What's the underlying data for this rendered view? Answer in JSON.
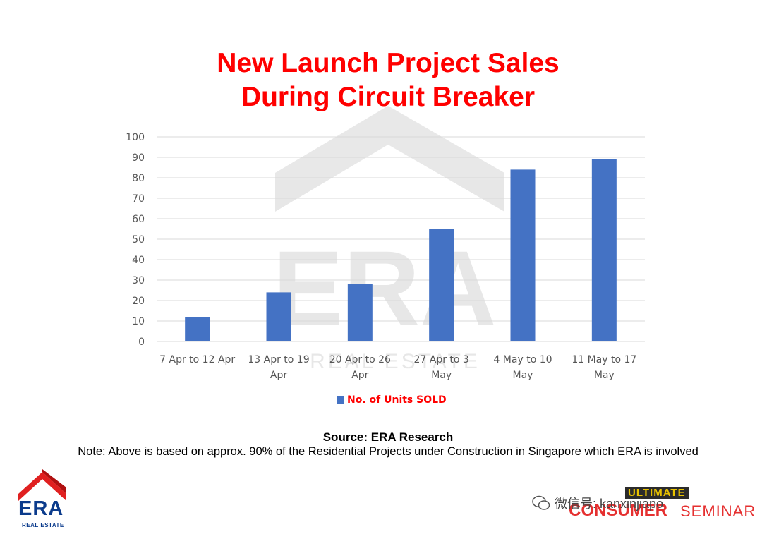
{
  "title_lines": [
    "New Launch Project Sales",
    "During Circuit Breaker"
  ],
  "chart_data": {
    "type": "bar",
    "categories": [
      [
        "7 Apr to 12 Apr"
      ],
      [
        "13 Apr to 19",
        "Apr"
      ],
      [
        "20 Apr to 26",
        "Apr"
      ],
      [
        "27 Apr to 3",
        "May"
      ],
      [
        "4 May to 10",
        "May"
      ],
      [
        "11 May to 17",
        "May"
      ]
    ],
    "series": [
      {
        "name": "No. of Units SOLD",
        "values": [
          12,
          24,
          28,
          55,
          84,
          89
        ]
      }
    ],
    "ylim": [
      0,
      100
    ],
    "yticks": [
      0,
      10,
      20,
      30,
      40,
      50,
      60,
      70,
      80,
      90,
      100
    ],
    "grid": true,
    "legend_position": "bottom",
    "bar_color": "#4472c4",
    "legend_text_color": "#ff0000"
  },
  "legend_label": "No. of Units SOLD",
  "source": "Source: ERA Research",
  "note": "Note: Above is based on approx. 90% of the Residential Projects under Construction in Singapore which ERA is involved",
  "logo": {
    "word": "ERA",
    "sub": "REAL ESTATE"
  },
  "watermark": {
    "wechat_id": "微信号: kanxinjiapo",
    "ultimate": "ULTIMATE",
    "consumer": "CONSUMER",
    "seminar": "SEMINAR",
    "icon": "wechat-icon"
  },
  "background_watermark": {
    "word": "ERA",
    "sub": "REAL ESTATE"
  },
  "colors": {
    "title": "#ff0000",
    "bar": "#4472c4",
    "grid": "#d9d9d9"
  }
}
